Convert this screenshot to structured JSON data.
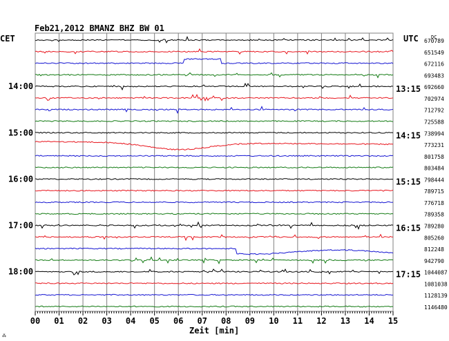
{
  "header": {
    "title": "Feb21,2012   BMANZ BHZ BW 01",
    "left_timezone": "CET",
    "right_timezone": "UTC",
    "dc_label": "DC",
    "footer_mark": "⁂"
  },
  "colors": {
    "trace_cycle": [
      "#000000",
      "#e8141c",
      "#1414d2",
      "#127a12"
    ],
    "grid": "#808080",
    "text": "#000000"
  },
  "chart_data": {
    "type": "line",
    "xlabel": "Zeit [min]",
    "xlim": [
      0,
      15
    ],
    "x_ticks": [
      "00",
      "01",
      "02",
      "03",
      "04",
      "05",
      "06",
      "07",
      "08",
      "09",
      "10",
      "11",
      "12",
      "13",
      "14",
      "15"
    ],
    "rows": [
      {
        "dc": "670789",
        "cet": "",
        "utc": ""
      },
      {
        "dc": "651549",
        "cet": "",
        "utc": ""
      },
      {
        "dc": "672116",
        "cet": "",
        "utc": ""
      },
      {
        "dc": "693483",
        "cet": "",
        "utc": ""
      },
      {
        "dc": "692660",
        "cet": "14:00",
        "utc": "13:15"
      },
      {
        "dc": "702974",
        "cet": "",
        "utc": ""
      },
      {
        "dc": "712792",
        "cet": "",
        "utc": ""
      },
      {
        "dc": "725588",
        "cet": "",
        "utc": ""
      },
      {
        "dc": "738994",
        "cet": "15:00",
        "utc": "14:15"
      },
      {
        "dc": "773231",
        "cet": "",
        "utc": ""
      },
      {
        "dc": "801758",
        "cet": "",
        "utc": ""
      },
      {
        "dc": "803484",
        "cet": "",
        "utc": ""
      },
      {
        "dc": "798444",
        "cet": "16:00",
        "utc": "15:15"
      },
      {
        "dc": "789715",
        "cet": "",
        "utc": ""
      },
      {
        "dc": "776718",
        "cet": "",
        "utc": ""
      },
      {
        "dc": "789358",
        "cet": "",
        "utc": ""
      },
      {
        "dc": "789280",
        "cet": "17:00",
        "utc": "16:15"
      },
      {
        "dc": "805260",
        "cet": "",
        "utc": ""
      },
      {
        "dc": "812248",
        "cet": "",
        "utc": ""
      },
      {
        "dc": "942790",
        "cet": "",
        "utc": ""
      },
      {
        "dc": "1044087",
        "cet": "18:00",
        "utc": "17:15"
      },
      {
        "dc": "1081038",
        "cet": "",
        "utc": ""
      },
      {
        "dc": "1128139",
        "cet": "",
        "utc": ""
      },
      {
        "dc": "1146480",
        "cet": "",
        "utc": ""
      }
    ]
  }
}
